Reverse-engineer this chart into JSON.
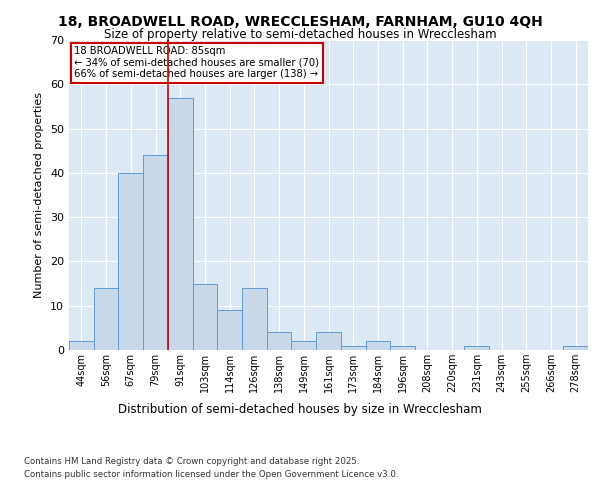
{
  "title1": "18, BROADWELL ROAD, WRECCLESHAM, FARNHAM, GU10 4QH",
  "title2": "Size of property relative to semi-detached houses in Wrecclesham",
  "xlabel": "Distribution of semi-detached houses by size in Wrecclesham",
  "ylabel": "Number of semi-detached properties",
  "bin_labels": [
    "44sqm",
    "56sqm",
    "67sqm",
    "79sqm",
    "91sqm",
    "103sqm",
    "114sqm",
    "126sqm",
    "138sqm",
    "149sqm",
    "161sqm",
    "173sqm",
    "184sqm",
    "196sqm",
    "208sqm",
    "220sqm",
    "231sqm",
    "243sqm",
    "255sqm",
    "266sqm",
    "278sqm"
  ],
  "bar_values": [
    2,
    14,
    40,
    44,
    57,
    15,
    9,
    14,
    4,
    2,
    4,
    1,
    2,
    1,
    0,
    0,
    1,
    0,
    0,
    0,
    1
  ],
  "bar_color": "#c9d9ea",
  "bar_edgecolor": "#5b9bd5",
  "vline_x": 3.5,
  "vline_color": "#cc0000",
  "annotation_title": "18 BROADWELL ROAD: 85sqm",
  "annotation_line1": "← 34% of semi-detached houses are smaller (70)",
  "annotation_line2": "66% of semi-detached houses are larger (138) →",
  "annotation_box_color": "#ffffff",
  "annotation_box_edgecolor": "#cc0000",
  "ylim": [
    0,
    70
  ],
  "yticks": [
    0,
    10,
    20,
    30,
    40,
    50,
    60,
    70
  ],
  "background_color": "#dde8f5",
  "footer1": "Contains HM Land Registry data © Crown copyright and database right 2025.",
  "footer2": "Contains public sector information licensed under the Open Government Licence v3.0."
}
